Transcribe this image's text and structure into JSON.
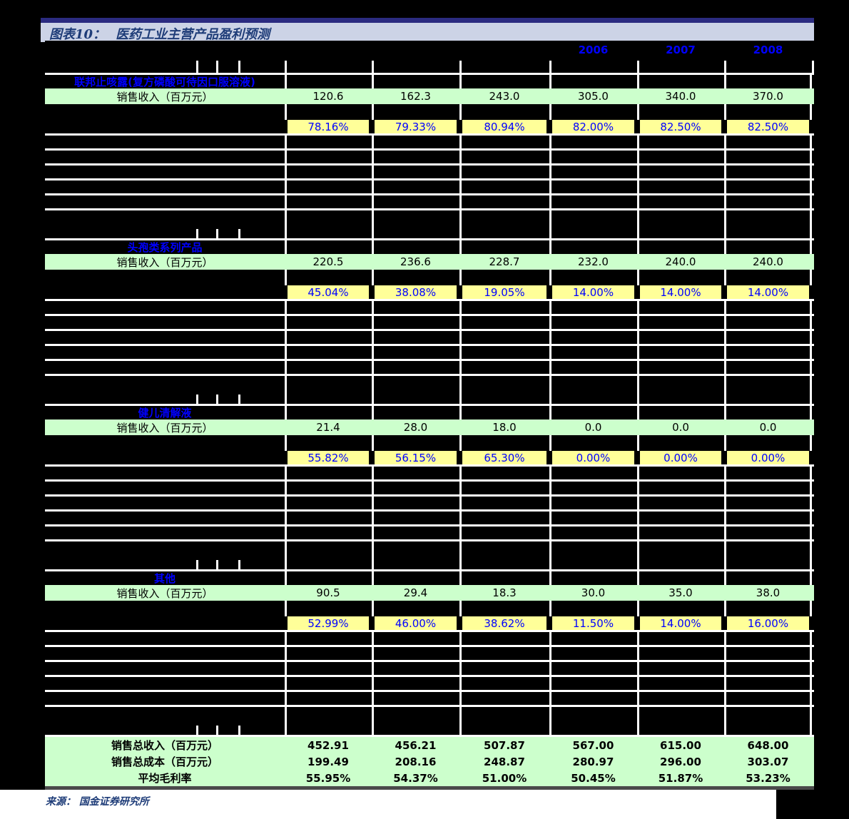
{
  "page": {
    "title_prefix": "图表10：",
    "title": "医药工业主营产品盈利预测",
    "source": "来源： 国金证券研究所"
  },
  "table": {
    "years": [
      "2006",
      "2007",
      "2008"
    ],
    "revenue_row_label": "销售收入（百万元）",
    "sections": [
      {
        "name": "联邦止咳露(复方磷酸可待因口服溶液)",
        "revenue": [
          "120.6",
          "162.3",
          "243.0",
          "305.0",
          "340.0",
          "370.0"
        ],
        "gross_margin": [
          "78.16%",
          "79.33%",
          "80.94%",
          "82.00%",
          "82.50%",
          "82.50%"
        ]
      },
      {
        "name": "头孢类系列产品",
        "revenue": [
          "220.5",
          "236.6",
          "228.7",
          "232.0",
          "240.0",
          "240.0"
        ],
        "gross_margin": [
          "45.04%",
          "38.08%",
          "19.05%",
          "14.00%",
          "14.00%",
          "14.00%"
        ]
      },
      {
        "name": "健儿清解液",
        "revenue": [
          "21.4",
          "28.0",
          "18.0",
          "0.0",
          "0.0",
          "0.0"
        ],
        "gross_margin": [
          "55.82%",
          "56.15%",
          "65.30%",
          "0.00%",
          "0.00%",
          "0.00%"
        ]
      },
      {
        "name": "其他",
        "revenue": [
          "90.5",
          "29.4",
          "18.3",
          "30.0",
          "35.0",
          "38.0"
        ],
        "gross_margin": [
          "52.99%",
          "46.00%",
          "38.62%",
          "11.50%",
          "14.00%",
          "16.00%"
        ]
      }
    ],
    "summary_rows": [
      {
        "label": "销售总收入（百万元）",
        "values": [
          "452.91",
          "456.21",
          "507.87",
          "567.00",
          "615.00",
          "648.00"
        ]
      },
      {
        "label": "销售总成本（百万元）",
        "values": [
          "199.49",
          "208.16",
          "248.87",
          "280.97",
          "296.00",
          "303.07"
        ]
      },
      {
        "label": "平均毛利率",
        "values": [
          "55.95%",
          "54.37%",
          "51.00%",
          "50.45%",
          "51.87%",
          "53.23%"
        ]
      }
    ]
  },
  "colors": {
    "section_title_text": "#0000ff",
    "year_text": "#0000ff",
    "margin_value_text": "#0000ff",
    "revenue_row_bg": "#ccffcc",
    "margin_cell_bg": "#ffff99",
    "redacted_cell_bg": "#000000",
    "gridline": "#ffffff",
    "title_bar_bg": "#ccd3e6",
    "title_bar_border": "#2b2b80",
    "title_text": "#1e3c78",
    "source_text": "#1e3c78"
  }
}
